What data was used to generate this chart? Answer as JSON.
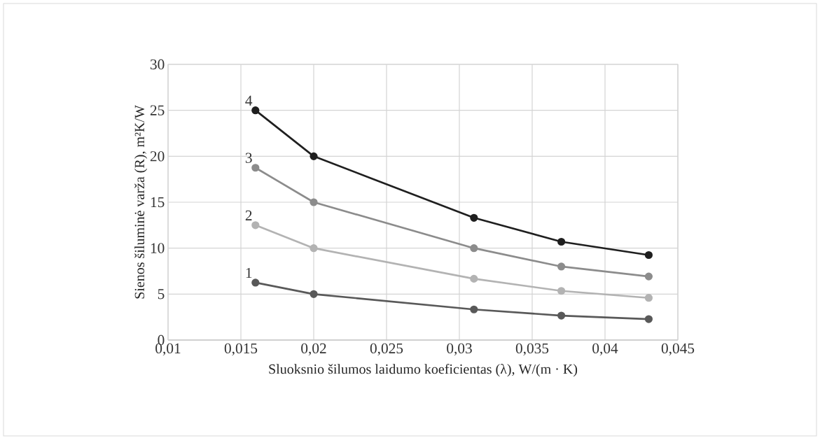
{
  "chart_data": {
    "type": "line",
    "xlabel": "Sluoksnio šilumos laidumo koeficientas (λ), W/(m · K)",
    "ylabel": "Sienos šiluminė varža (R), m²K/W",
    "x": [
      0.016,
      0.02,
      0.031,
      0.037,
      0.043
    ],
    "series": [
      {
        "name": "1",
        "color": "#595959",
        "values": [
          6.25,
          5,
          3.33,
          2.66,
          2.28
        ]
      },
      {
        "name": "2",
        "color": "#b3b3b3",
        "values": [
          12.5,
          10,
          6.67,
          5.35,
          4.59
        ]
      },
      {
        "name": "3",
        "color": "#8c8c8c",
        "values": [
          18.75,
          15,
          10,
          8.0,
          6.92
        ]
      },
      {
        "name": "4",
        "color": "#1f1f1f",
        "values": [
          25,
          20,
          13.3,
          10.7,
          9.25
        ]
      }
    ],
    "xlim": [
      0.01,
      0.045
    ],
    "xticks": [
      {
        "value": 0.01,
        "label": "0,01"
      },
      {
        "value": 0.015,
        "label": "0,015"
      },
      {
        "value": 0.02,
        "label": "0,02"
      },
      {
        "value": 0.025,
        "label": "0,025"
      },
      {
        "value": 0.03,
        "label": "0,03"
      },
      {
        "value": 0.035,
        "label": "0,035"
      },
      {
        "value": 0.04,
        "label": "0,04"
      },
      {
        "value": 0.045,
        "label": "0,045"
      }
    ],
    "ylim": [
      0,
      30
    ],
    "yticks": [
      0,
      5,
      10,
      15,
      20,
      25,
      30
    ],
    "grid": true,
    "marker": "circle",
    "line_style": "solid"
  }
}
